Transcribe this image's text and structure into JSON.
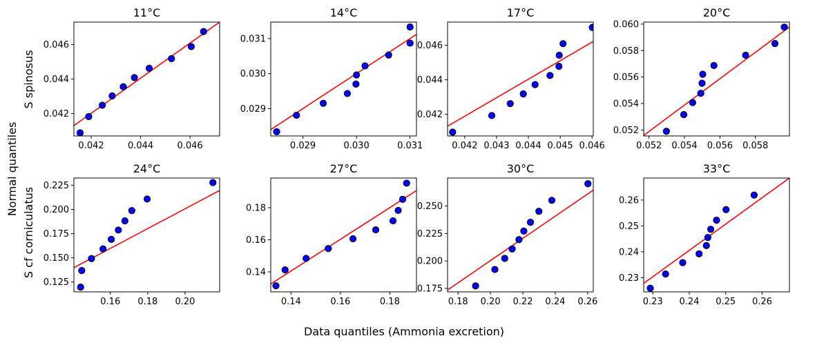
{
  "figure": {
    "xlabel": "Data quantiles (Ammonia excretion)",
    "ylabel": "Normal quantiles",
    "row_labels": [
      "S spinosus",
      "S cf corniculatus"
    ]
  },
  "colors": {
    "point_fill": "#0000ff",
    "point_edge": "#000000",
    "line": "#ff0000",
    "axes": "#000000"
  },
  "chart_data": [
    {
      "type": "scatter",
      "title": "11°C",
      "row": 0,
      "col": 0,
      "xlim": [
        0.0413,
        0.0472
      ],
      "ylim": [
        0.0407,
        0.0473
      ],
      "xticks": [
        0.042,
        0.044,
        0.046
      ],
      "xtick_labels": [
        "0.042",
        "0.044",
        "0.046"
      ],
      "yticks": [
        0.042,
        0.044,
        0.046
      ],
      "ytick_labels": [
        "0.042",
        "0.044",
        "0.046"
      ],
      "x": [
        0.04155,
        0.0419,
        0.04245,
        0.04285,
        0.0433,
        0.04375,
        0.04435,
        0.04525,
        0.04605,
        0.04655
      ],
      "y": [
        0.04088,
        0.04182,
        0.04248,
        0.04302,
        0.04355,
        0.04408,
        0.04462,
        0.04518,
        0.04588,
        0.04675
      ],
      "fit_line": {
        "x": [
          0.0413,
          0.0472
        ],
        "y": [
          0.0413,
          0.0473
        ]
      }
    },
    {
      "type": "scatter",
      "title": "14°C",
      "row": 0,
      "col": 1,
      "xlim": [
        0.0284,
        0.03112
      ],
      "ylim": [
        0.02822,
        0.03147
      ],
      "xticks": [
        0.029,
        0.03,
        0.031
      ],
      "xtick_labels": [
        "0.029",
        "0.030",
        "0.031"
      ],
      "yticks": [
        0.029,
        0.03,
        0.031
      ],
      "ytick_labels": [
        "0.029",
        "0.030",
        "0.031"
      ],
      "x": [
        0.02851,
        0.02888,
        0.02938,
        0.02983,
        0.02999,
        0.03,
        0.03016,
        0.0306,
        0.031,
        0.031
      ],
      "y": [
        0.02834,
        0.02881,
        0.02915,
        0.02943,
        0.0297,
        0.02996,
        0.03022,
        0.03053,
        0.03087,
        0.03133
      ],
      "fit_line": {
        "x": [
          0.0284,
          0.03112
        ],
        "y": [
          0.0284,
          0.03112
        ]
      }
    },
    {
      "type": "scatter",
      "title": "17°C",
      "row": 0,
      "col": 2,
      "xlim": [
        0.04146,
        0.04604
      ],
      "ylim": [
        0.04075,
        0.04734
      ],
      "xticks": [
        0.042,
        0.043,
        0.044,
        0.045,
        0.046
      ],
      "xtick_labels": [
        "0.042",
        "0.043",
        "0.044",
        "0.045",
        "0.046"
      ],
      "yticks": [
        0.042,
        0.044,
        0.046
      ],
      "ytick_labels": [
        "0.042",
        "0.044",
        "0.046"
      ],
      "x": [
        0.04162,
        0.04285,
        0.04343,
        0.04384,
        0.04421,
        0.04468,
        0.04496,
        0.04497,
        0.04509,
        0.04601
      ],
      "y": [
        0.04097,
        0.04193,
        0.04262,
        0.04318,
        0.04372,
        0.04425,
        0.04478,
        0.04542,
        0.04609,
        0.04703
      ],
      "fit_line": {
        "x": [
          0.04146,
          0.04604
        ],
        "y": [
          0.04131,
          0.04622
        ]
      }
    },
    {
      "type": "scatter",
      "title": "20°C",
      "row": 0,
      "col": 3,
      "xlim": [
        0.0517,
        0.05992
      ],
      "ylim": [
        0.05155,
        0.06015
      ],
      "xticks": [
        0.052,
        0.054,
        0.056,
        0.058
      ],
      "xtick_labels": [
        "0.052",
        "0.054",
        "0.056",
        "0.058"
      ],
      "yticks": [
        0.052,
        0.054,
        0.056,
        0.058,
        0.06
      ],
      "ytick_labels": [
        "0.052",
        "0.054",
        "0.056",
        "0.058",
        "0.060"
      ],
      "x": [
        0.05298,
        0.05396,
        0.05446,
        0.05492,
        0.05499,
        0.05503,
        0.05566,
        0.05745,
        0.0591,
        0.05963
      ],
      "y": [
        0.0519,
        0.05316,
        0.05407,
        0.05477,
        0.05553,
        0.05621,
        0.05687,
        0.05765,
        0.05853,
        0.05977
      ],
      "fit_line": {
        "x": [
          0.0517,
          0.05992
        ],
        "y": [
          0.05159,
          0.05978
        ]
      }
    },
    {
      "type": "scatter",
      "title": "24°C",
      "row": 1,
      "col": 0,
      "xlim": [
        0.1405,
        0.2185
      ],
      "ylim": [
        0.1148,
        0.2325
      ],
      "xticks": [
        0.16,
        0.18,
        0.2
      ],
      "xtick_labels": [
        "0.16",
        "0.18",
        "0.20"
      ],
      "yticks": [
        0.125,
        0.15,
        0.175,
        0.2,
        0.225
      ],
      "ytick_labels": [
        "0.125",
        "0.150",
        "0.175",
        "0.200",
        "0.225"
      ],
      "x": [
        0.1441,
        0.1447,
        0.1499,
        0.1561,
        0.1605,
        0.1643,
        0.1678,
        0.1715,
        0.1797,
        0.2149
      ],
      "y": [
        0.1197,
        0.1368,
        0.1492,
        0.1592,
        0.1691,
        0.1787,
        0.1882,
        0.1988,
        0.2108,
        0.2278
      ],
      "fit_line": {
        "x": [
          0.1405,
          0.2185
        ],
        "y": [
          0.1398,
          0.2196
        ]
      }
    },
    {
      "type": "scatter",
      "title": "27°C",
      "row": 1,
      "col": 1,
      "xlim": [
        0.1318,
        0.1908
      ],
      "ylim": [
        0.1275,
        0.1985
      ],
      "xticks": [
        0.14,
        0.16,
        0.18
      ],
      "xtick_labels": [
        "0.14",
        "0.16",
        "0.18"
      ],
      "yticks": [
        0.14,
        0.16,
        0.18
      ],
      "ytick_labels": [
        "0.14",
        "0.16",
        "0.18"
      ],
      "x": [
        0.1339,
        0.1376,
        0.1461,
        0.1551,
        0.1651,
        0.1743,
        0.1813,
        0.1834,
        0.1852,
        0.1868
      ],
      "y": [
        0.1313,
        0.1412,
        0.1484,
        0.1545,
        0.1606,
        0.1662,
        0.1718,
        0.1783,
        0.1852,
        0.1953
      ],
      "fit_line": {
        "x": [
          0.1318,
          0.1908
        ],
        "y": [
          0.1324,
          0.1907
        ]
      }
    },
    {
      "type": "scatter",
      "title": "30°C",
      "row": 1,
      "col": 2,
      "xlim": [
        0.1735,
        0.2635
      ],
      "ylim": [
        0.1718,
        0.2755
      ],
      "xticks": [
        0.18,
        0.2,
        0.22,
        0.24,
        0.26
      ],
      "xtick_labels": [
        "0.18",
        "0.20",
        "0.22",
        "0.24",
        "0.26"
      ],
      "yticks": [
        0.175,
        0.2,
        0.225,
        0.25
      ],
      "ytick_labels": [
        "0.175",
        "0.200",
        "0.225",
        "0.250"
      ],
      "x": [
        0.1908,
        0.2027,
        0.2088,
        0.2134,
        0.2176,
        0.2206,
        0.2247,
        0.2299,
        0.2379,
        0.2602
      ],
      "y": [
        0.1772,
        0.1922,
        0.2023,
        0.2109,
        0.2194,
        0.2272,
        0.2352,
        0.2452,
        0.2552,
        0.2703
      ],
      "fit_line": {
        "x": [
          0.1735,
          0.2635
        ],
        "y": [
          0.1735,
          0.2645
        ]
      }
    },
    {
      "type": "scatter",
      "title": "33°C",
      "row": 1,
      "col": 3,
      "xlim": [
        0.2275,
        0.2675
      ],
      "ylim": [
        0.2245,
        0.2685
      ],
      "xticks": [
        0.23,
        0.24,
        0.25,
        0.26
      ],
      "xtick_labels": [
        "0.23",
        "0.24",
        "0.25",
        "0.26"
      ],
      "yticks": [
        0.23,
        0.24,
        0.25,
        0.26
      ],
      "ytick_labels": [
        "0.23",
        "0.24",
        "0.25",
        "0.26"
      ],
      "x": [
        0.2293,
        0.2335,
        0.2382,
        0.2427,
        0.2447,
        0.2451,
        0.2459,
        0.2475,
        0.2501,
        0.2578
      ],
      "y": [
        0.2259,
        0.2314,
        0.2358,
        0.2392,
        0.2424,
        0.2455,
        0.2487,
        0.2522,
        0.2563,
        0.2619
      ],
      "fit_line": {
        "x": [
          0.2275,
          0.2675
        ],
        "y": [
          0.2278,
          0.2685
        ]
      }
    }
  ]
}
